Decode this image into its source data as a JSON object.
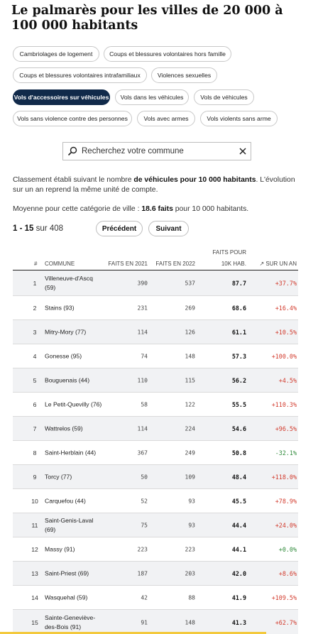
{
  "title": "Le palmarès pour les villes de 20 000 à 100 000 habitants",
  "filters": [
    {
      "label": "Cambriolages de logement",
      "active": false
    },
    {
      "label": "Coups et blessures volontaires hors famille",
      "active": false
    },
    {
      "label": "Coups et blessures volontaires intrafamiliaux",
      "active": false
    },
    {
      "label": "Violences sexuelles",
      "active": false
    },
    {
      "label": "Vols d'accessoires sur véhicules",
      "active": true
    },
    {
      "label": "Vols dans les véhicules",
      "active": false
    },
    {
      "label": "Vols de véhicules",
      "active": false
    },
    {
      "label": "Vols sans violence contre des personnes",
      "active": false
    },
    {
      "label": "Vols avec armes",
      "active": false
    },
    {
      "label": "Vols violents sans arme",
      "active": false
    }
  ],
  "search": {
    "placeholder": "Recherchez votre commune",
    "value": ""
  },
  "description": {
    "part1": "Classement établi suivant le nombre ",
    "bold": "de véhicules pour 10 000 habitants",
    "part2": ". L'évolution sur un an reprend la même unité de compte."
  },
  "average": {
    "prefix": "Moyenne pour cette catégorie de ville : ",
    "value": "18.6 faits",
    "suffix": " pour 10 000 habitants."
  },
  "pagination": {
    "range": "1 - 15",
    "of_label": "sur",
    "total": "408",
    "prev_label": "Précédent",
    "next_label": "Suivant"
  },
  "table": {
    "headers": {
      "idx": "#",
      "commune": "COMMUNE",
      "faits2021": "FAITS EN 2021",
      "faits2022": "FAITS EN 2022",
      "rate_line1": "FAITS POUR",
      "rate_line2": "10K HAB.",
      "evolution": "↗ SUR UN AN"
    },
    "rows": [
      {
        "idx": "1",
        "name": "Villeneuve-d'Ascq (59)",
        "v21": "390",
        "v22": "537",
        "rate": "87.7",
        "evo": "+37.7%",
        "dir": "up"
      },
      {
        "idx": "2",
        "name": "Stains (93)",
        "v21": "231",
        "v22": "269",
        "rate": "68.6",
        "evo": "+16.4%",
        "dir": "up"
      },
      {
        "idx": "3",
        "name": "Mitry-Mory (77)",
        "v21": "114",
        "v22": "126",
        "rate": "61.1",
        "evo": "+10.5%",
        "dir": "up"
      },
      {
        "idx": "4",
        "name": "Gonesse (95)",
        "v21": "74",
        "v22": "148",
        "rate": "57.3",
        "evo": "+100.0%",
        "dir": "up"
      },
      {
        "idx": "5",
        "name": "Bouguenais (44)",
        "v21": "110",
        "v22": "115",
        "rate": "56.2",
        "evo": "+4.5%",
        "dir": "up"
      },
      {
        "idx": "6",
        "name": "Le Petit-Quevilly (76)",
        "v21": "58",
        "v22": "122",
        "rate": "55.5",
        "evo": "+110.3%",
        "dir": "up"
      },
      {
        "idx": "7",
        "name": "Wattrelos (59)",
        "v21": "114",
        "v22": "224",
        "rate": "54.6",
        "evo": "+96.5%",
        "dir": "up"
      },
      {
        "idx": "8",
        "name": "Saint-Herblain (44)",
        "v21": "367",
        "v22": "249",
        "rate": "50.8",
        "evo": "-32.1%",
        "dir": "down"
      },
      {
        "idx": "9",
        "name": "Torcy (77)",
        "v21": "50",
        "v22": "109",
        "rate": "48.4",
        "evo": "+118.0%",
        "dir": "up"
      },
      {
        "idx": "10",
        "name": "Carquefou (44)",
        "v21": "52",
        "v22": "93",
        "rate": "45.5",
        "evo": "+78.9%",
        "dir": "up"
      },
      {
        "idx": "11",
        "name": "Saint-Genis-Laval (69)",
        "v21": "75",
        "v22": "93",
        "rate": "44.4",
        "evo": "+24.0%",
        "dir": "up"
      },
      {
        "idx": "12",
        "name": "Massy (91)",
        "v21": "223",
        "v22": "223",
        "rate": "44.1",
        "evo": "+0.0%",
        "dir": "zero"
      },
      {
        "idx": "13",
        "name": "Saint-Priest (69)",
        "v21": "187",
        "v22": "203",
        "rate": "42.0",
        "evo": "+8.6%",
        "dir": "up"
      },
      {
        "idx": "14",
        "name": "Wasquehal (59)",
        "v21": "42",
        "v22": "88",
        "rate": "41.9",
        "evo": "+109.5%",
        "dir": "up"
      },
      {
        "idx": "15",
        "name": "Sainte-Geneviève-des-Bois (91)",
        "v21": "91",
        "v22": "148",
        "rate": "41.3",
        "evo": "+62.7%",
        "dir": "up"
      }
    ]
  },
  "colors": {
    "accent": "#112a4a",
    "increase": "#d23a2c",
    "decrease": "#2f8a3a",
    "highlight_bar": "#f3c93c"
  },
  "icons": {
    "search": "magnifier-icon",
    "clear": "close-icon"
  }
}
